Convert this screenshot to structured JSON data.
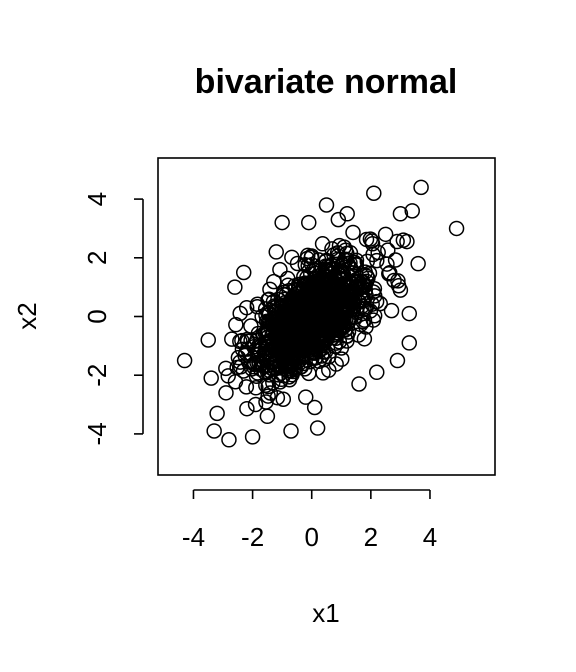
{
  "chart_data": {
    "type": "scatter",
    "title": "bivariate normal",
    "xlabel": "x1",
    "ylabel": "x2",
    "xlim": [
      -5.2,
      6.2
    ],
    "ylim": [
      -5.4,
      5.4
    ],
    "x_ticks": [
      -4,
      -2,
      0,
      2,
      4
    ],
    "y_ticks": [
      -4,
      -2,
      0,
      2,
      4
    ],
    "x_tick_labels": [
      "-4",
      "-2",
      "0",
      "2",
      "4"
    ],
    "y_tick_labels": [
      "-4",
      "-2",
      "0",
      "2",
      "4"
    ],
    "grid": false,
    "legend": "none",
    "marker": "open-circle",
    "point_color": "#000000",
    "series": [
      {
        "x": [
          -4.3,
          4.9,
          3.7,
          2.1,
          3.4,
          3.0,
          -2.8,
          -3.3,
          -2.0,
          -0.7,
          0.2,
          -3.2,
          3.6,
          -3.4,
          2.9,
          3.3,
          0.9,
          0.5,
          3.1,
          2.7,
          -2.6,
          -2.3,
          1.6,
          2.2,
          -1.0,
          1.2,
          -0.1,
          -1.5,
          3.0,
          2.5,
          -1.9,
          -2.9,
          -3.5,
          0.1,
          -1.2,
          0.8,
          3.3,
          -2.2,
          1.9,
          1.1
        ],
        "y": [
          -1.5,
          3.0,
          4.4,
          4.2,
          3.6,
          3.5,
          -4.2,
          -3.9,
          -4.1,
          -3.9,
          -3.8,
          -3.3,
          1.8,
          -2.1,
          -1.5,
          -0.9,
          3.3,
          3.8,
          2.6,
          0.2,
          1.0,
          1.5,
          -2.3,
          -1.9,
          3.2,
          3.5,
          3.2,
          -3.4,
          0.9,
          2.8,
          -3.0,
          -2.6,
          -0.8,
          -3.1,
          2.2,
          0.9,
          0.1,
          0.3,
          1.3,
          -0.3
        ]
      }
    ]
  }
}
